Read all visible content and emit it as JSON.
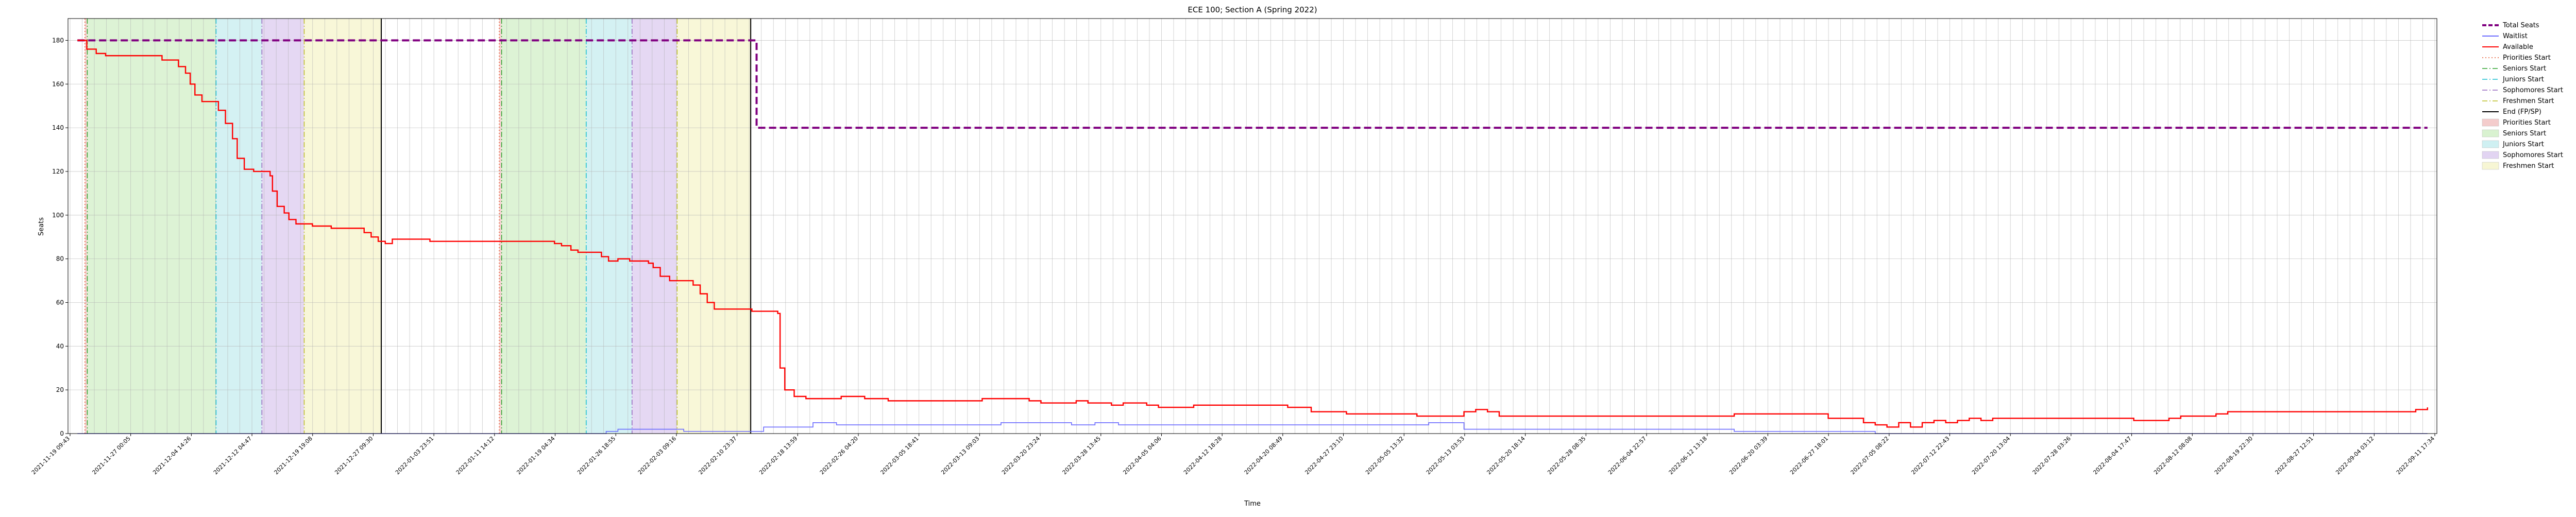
{
  "chart_data": {
    "type": "line",
    "title": "ECE 100; Section A (Spring 2022)",
    "xlabel": "Time",
    "ylabel": "Seats",
    "ylim": [
      0,
      190
    ],
    "yticks": [
      0,
      20,
      40,
      60,
      80,
      100,
      120,
      140,
      160,
      180
    ],
    "grid": true,
    "legend_placement": "outside-right",
    "x_tick_labels": [
      "2021-11-19 09:43",
      "2021-11-27 00:05",
      "2021-12-04 14:26",
      "2021-12-12 04:47",
      "2021-12-19 19:08",
      "2021-12-27 09:30",
      "2022-01-03 23:51",
      "2022-01-11 14:12",
      "2022-01-19 04:34",
      "2022-01-26 18:55",
      "2022-02-03 09:16",
      "2022-02-10 23:37",
      "2022-02-18 13:59",
      "2022-02-26 04:20",
      "2022-03-05 18:41",
      "2022-03-13 09:03",
      "2022-03-20 23:24",
      "2022-03-28 13:45",
      "2022-04-05 04:06",
      "2022-04-12 18:28",
      "2022-04-20 08:49",
      "2022-04-27 23:10",
      "2022-05-05 13:32",
      "2022-05-13 03:53",
      "2022-05-20 18:14",
      "2022-05-28 08:35",
      "2022-06-04 22:57",
      "2022-06-12 13:18",
      "2022-06-20 03:39",
      "2022-06-27 18:01",
      "2022-07-05 08:22",
      "2022-07-12 22:43",
      "2022-07-20 13:04",
      "2022-07-28 03:26",
      "2022-08-04 17:47",
      "2022-08-12 08:08",
      "2022-08-19 22:30",
      "2022-08-27 12:51",
      "2022-09-04 03:12",
      "2022-09-11 17:34"
    ],
    "series": [
      {
        "name": "Total Seats",
        "color": "#800080",
        "style": "dashed",
        "points": [
          [
            0,
            180
          ],
          [
            0.289,
            180
          ],
          [
            0.289,
            140
          ],
          [
            1,
            140
          ]
        ]
      },
      {
        "name": "Waitlist",
        "color": "#6b6bff",
        "style": "solid",
        "points": [
          [
            0,
            0
          ],
          [
            0.222,
            0
          ],
          [
            0.225,
            1
          ],
          [
            0.23,
            2
          ],
          [
            0.255,
            2
          ],
          [
            0.258,
            1
          ],
          [
            0.289,
            1
          ],
          [
            0.292,
            3
          ],
          [
            0.31,
            3
          ],
          [
            0.313,
            5
          ],
          [
            0.32,
            5
          ],
          [
            0.323,
            4
          ],
          [
            0.39,
            4
          ],
          [
            0.393,
            5
          ],
          [
            0.42,
            5
          ],
          [
            0.423,
            4
          ],
          [
            0.43,
            4
          ],
          [
            0.433,
            5
          ],
          [
            0.44,
            5
          ],
          [
            0.443,
            4
          ],
          [
            0.57,
            4
          ],
          [
            0.575,
            5
          ],
          [
            0.585,
            5
          ],
          [
            0.59,
            2
          ],
          [
            0.7,
            2
          ],
          [
            0.705,
            1
          ],
          [
            0.76,
            1
          ],
          [
            0.765,
            0
          ],
          [
            1,
            0
          ]
        ]
      },
      {
        "name": "Available",
        "color": "#ff0000",
        "style": "solid",
        "points": [
          [
            0,
            180
          ],
          [
            0.003,
            180
          ],
          [
            0.004,
            176
          ],
          [
            0.008,
            174
          ],
          [
            0.012,
            173
          ],
          [
            0.033,
            173
          ],
          [
            0.036,
            171
          ],
          [
            0.04,
            171
          ],
          [
            0.043,
            168
          ],
          [
            0.046,
            165
          ],
          [
            0.048,
            160
          ],
          [
            0.05,
            155
          ],
          [
            0.053,
            152
          ],
          [
            0.058,
            152
          ],
          [
            0.06,
            148
          ],
          [
            0.063,
            142
          ],
          [
            0.066,
            135
          ],
          [
            0.068,
            126
          ],
          [
            0.071,
            121
          ],
          [
            0.075,
            120
          ],
          [
            0.08,
            120
          ],
          [
            0.082,
            118
          ],
          [
            0.083,
            111
          ],
          [
            0.085,
            104
          ],
          [
            0.088,
            101
          ],
          [
            0.09,
            98
          ],
          [
            0.093,
            96
          ],
          [
            0.098,
            96
          ],
          [
            0.1,
            95
          ],
          [
            0.108,
            94
          ],
          [
            0.115,
            94
          ],
          [
            0.12,
            94
          ],
          [
            0.122,
            92
          ],
          [
            0.125,
            90
          ],
          [
            0.128,
            88
          ],
          [
            0.131,
            87
          ],
          [
            0.134,
            89
          ],
          [
            0.14,
            89
          ],
          [
            0.145,
            89
          ],
          [
            0.15,
            88
          ],
          [
            0.16,
            88
          ],
          [
            0.185,
            88
          ],
          [
            0.2,
            88
          ],
          [
            0.203,
            87
          ],
          [
            0.206,
            86
          ],
          [
            0.21,
            84
          ],
          [
            0.213,
            83
          ],
          [
            0.22,
            83
          ],
          [
            0.223,
            81
          ],
          [
            0.226,
            79
          ],
          [
            0.23,
            80
          ],
          [
            0.235,
            79
          ],
          [
            0.24,
            79
          ],
          [
            0.243,
            78
          ],
          [
            0.245,
            76
          ],
          [
            0.248,
            72
          ],
          [
            0.252,
            70
          ],
          [
            0.256,
            70
          ],
          [
            0.26,
            70
          ],
          [
            0.262,
            68
          ],
          [
            0.265,
            64
          ],
          [
            0.268,
            60
          ],
          [
            0.271,
            57
          ],
          [
            0.285,
            57
          ],
          [
            0.287,
            56
          ],
          [
            0.295,
            56
          ],
          [
            0.298,
            55
          ],
          [
            0.299,
            30
          ],
          [
            0.301,
            20
          ],
          [
            0.305,
            17
          ],
          [
            0.31,
            16
          ],
          [
            0.32,
            16
          ],
          [
            0.325,
            17
          ],
          [
            0.33,
            17
          ],
          [
            0.335,
            16
          ],
          [
            0.34,
            16
          ],
          [
            0.345,
            15
          ],
          [
            0.38,
            15
          ],
          [
            0.385,
            16
          ],
          [
            0.4,
            16
          ],
          [
            0.405,
            15
          ],
          [
            0.41,
            14
          ],
          [
            0.42,
            14
          ],
          [
            0.425,
            15
          ],
          [
            0.43,
            14
          ],
          [
            0.435,
            14
          ],
          [
            0.44,
            13
          ],
          [
            0.445,
            14
          ],
          [
            0.45,
            14
          ],
          [
            0.455,
            13
          ],
          [
            0.46,
            12
          ],
          [
            0.47,
            12
          ],
          [
            0.475,
            13
          ],
          [
            0.51,
            13
          ],
          [
            0.515,
            12
          ],
          [
            0.52,
            12
          ],
          [
            0.525,
            10
          ],
          [
            0.535,
            10
          ],
          [
            0.54,
            9
          ],
          [
            0.565,
            9
          ],
          [
            0.57,
            8
          ],
          [
            0.585,
            8
          ],
          [
            0.59,
            10
          ],
          [
            0.595,
            11
          ],
          [
            0.6,
            10
          ],
          [
            0.605,
            8
          ],
          [
            0.7,
            8
          ],
          [
            0.705,
            9
          ],
          [
            0.74,
            9
          ],
          [
            0.745,
            7
          ],
          [
            0.755,
            7
          ],
          [
            0.76,
            5
          ],
          [
            0.765,
            4
          ],
          [
            0.77,
            3
          ],
          [
            0.775,
            5
          ],
          [
            0.78,
            3
          ],
          [
            0.785,
            5
          ],
          [
            0.79,
            6
          ],
          [
            0.795,
            5
          ],
          [
            0.8,
            6
          ],
          [
            0.805,
            7
          ],
          [
            0.81,
            6
          ],
          [
            0.815,
            7
          ],
          [
            0.87,
            7
          ],
          [
            0.875,
            6
          ],
          [
            0.885,
            6
          ],
          [
            0.89,
            7
          ],
          [
            0.895,
            8
          ],
          [
            0.905,
            8
          ],
          [
            0.91,
            9
          ],
          [
            0.915,
            10
          ],
          [
            0.99,
            10
          ],
          [
            0.995,
            11
          ],
          [
            1,
            12
          ]
        ]
      }
    ],
    "vlines": [
      {
        "name": "Priorities Start",
        "x": 0.0032,
        "color": "#e4572e",
        "style": "dotted"
      },
      {
        "name": "Seniors Start",
        "x": 0.0042,
        "color": "#2ca02c",
        "style": "dashdot"
      },
      {
        "name": "Juniors Start",
        "x": 0.059,
        "color": "#17becf",
        "style": "dashdot"
      },
      {
        "name": "Sophomores Start",
        "x": 0.0785,
        "color": "#9467bd",
        "style": "dashdot"
      },
      {
        "name": "Freshmen Start",
        "x": 0.0965,
        "color": "#bcbd22",
        "style": "dashdot"
      },
      {
        "name": "End (FP/SP)",
        "x": 0.1293,
        "color": "#000000",
        "style": "solid"
      },
      {
        "name": "Priorities Start",
        "x": 0.1795,
        "color": "#e4572e",
        "style": "dotted"
      },
      {
        "name": "Seniors Start",
        "x": 0.1805,
        "color": "#2ca02c",
        "style": "dashdot"
      },
      {
        "name": "Juniors Start",
        "x": 0.2165,
        "color": "#17becf",
        "style": "dashdot"
      },
      {
        "name": "Sophomores Start",
        "x": 0.236,
        "color": "#9467bd",
        "style": "dashdot"
      },
      {
        "name": "Freshmen Start",
        "x": 0.2552,
        "color": "#bcbd22",
        "style": "dashdot"
      },
      {
        "name": "End (FP/SP)",
        "x": 0.2865,
        "color": "#000000",
        "style": "solid"
      }
    ],
    "spans": [
      {
        "name": "Priorities Start",
        "x0": 0.0032,
        "x1": 0.0042,
        "color": "#f4cccc"
      },
      {
        "name": "Seniors Start",
        "x0": 0.0042,
        "x1": 0.059,
        "color": "#d9f2d0"
      },
      {
        "name": "Juniors Start",
        "x0": 0.059,
        "x1": 0.0785,
        "color": "#cff0f2"
      },
      {
        "name": "Sophomores Start",
        "x0": 0.0785,
        "x1": 0.0965,
        "color": "#e2d4f2"
      },
      {
        "name": "Freshmen Start",
        "x0": 0.0965,
        "x1": 0.1293,
        "color": "#f7f6d4"
      },
      {
        "name": "Priorities Start",
        "x0": 0.1795,
        "x1": 0.1805,
        "color": "#f4cccc"
      },
      {
        "name": "Seniors Start",
        "x0": 0.1805,
        "x1": 0.2165,
        "color": "#d9f2d0"
      },
      {
        "name": "Juniors Start",
        "x0": 0.2165,
        "x1": 0.236,
        "color": "#cff0f2"
      },
      {
        "name": "Sophomores Start",
        "x0": 0.236,
        "x1": 0.2552,
        "color": "#e2d4f2"
      },
      {
        "name": "Freshmen Start",
        "x0": 0.2552,
        "x1": 0.2865,
        "color": "#f7f6d4"
      }
    ],
    "legend": [
      {
        "label": "Total Seats",
        "kind": "line",
        "color": "#800080",
        "style": "dashed"
      },
      {
        "label": "Waitlist",
        "kind": "line",
        "color": "#6b6bff",
        "style": "solid"
      },
      {
        "label": "Available",
        "kind": "line",
        "color": "#ff0000",
        "style": "solid"
      },
      {
        "label": "Priorities Start",
        "kind": "line",
        "color": "#e4572e",
        "style": "dotted"
      },
      {
        "label": "Seniors Start",
        "kind": "line",
        "color": "#2ca02c",
        "style": "dashdot"
      },
      {
        "label": "Juniors Start",
        "kind": "line",
        "color": "#17becf",
        "style": "dashdot"
      },
      {
        "label": "Sophomores Start",
        "kind": "line",
        "color": "#9467bd",
        "style": "dashdot"
      },
      {
        "label": "Freshmen Start",
        "kind": "line",
        "color": "#bcbd22",
        "style": "dashdot"
      },
      {
        "label": "End (FP/SP)",
        "kind": "line",
        "color": "#000000",
        "style": "solid"
      },
      {
        "label": "Priorities Start",
        "kind": "patch",
        "color": "#f4cccc"
      },
      {
        "label": "Seniors Start",
        "kind": "patch",
        "color": "#d9f2d0"
      },
      {
        "label": "Juniors Start",
        "kind": "patch",
        "color": "#cff0f2"
      },
      {
        "label": "Sophomores Start",
        "kind": "patch",
        "color": "#e2d4f2"
      },
      {
        "label": "Freshmen Start",
        "kind": "patch",
        "color": "#f7f6d4"
      }
    ]
  }
}
